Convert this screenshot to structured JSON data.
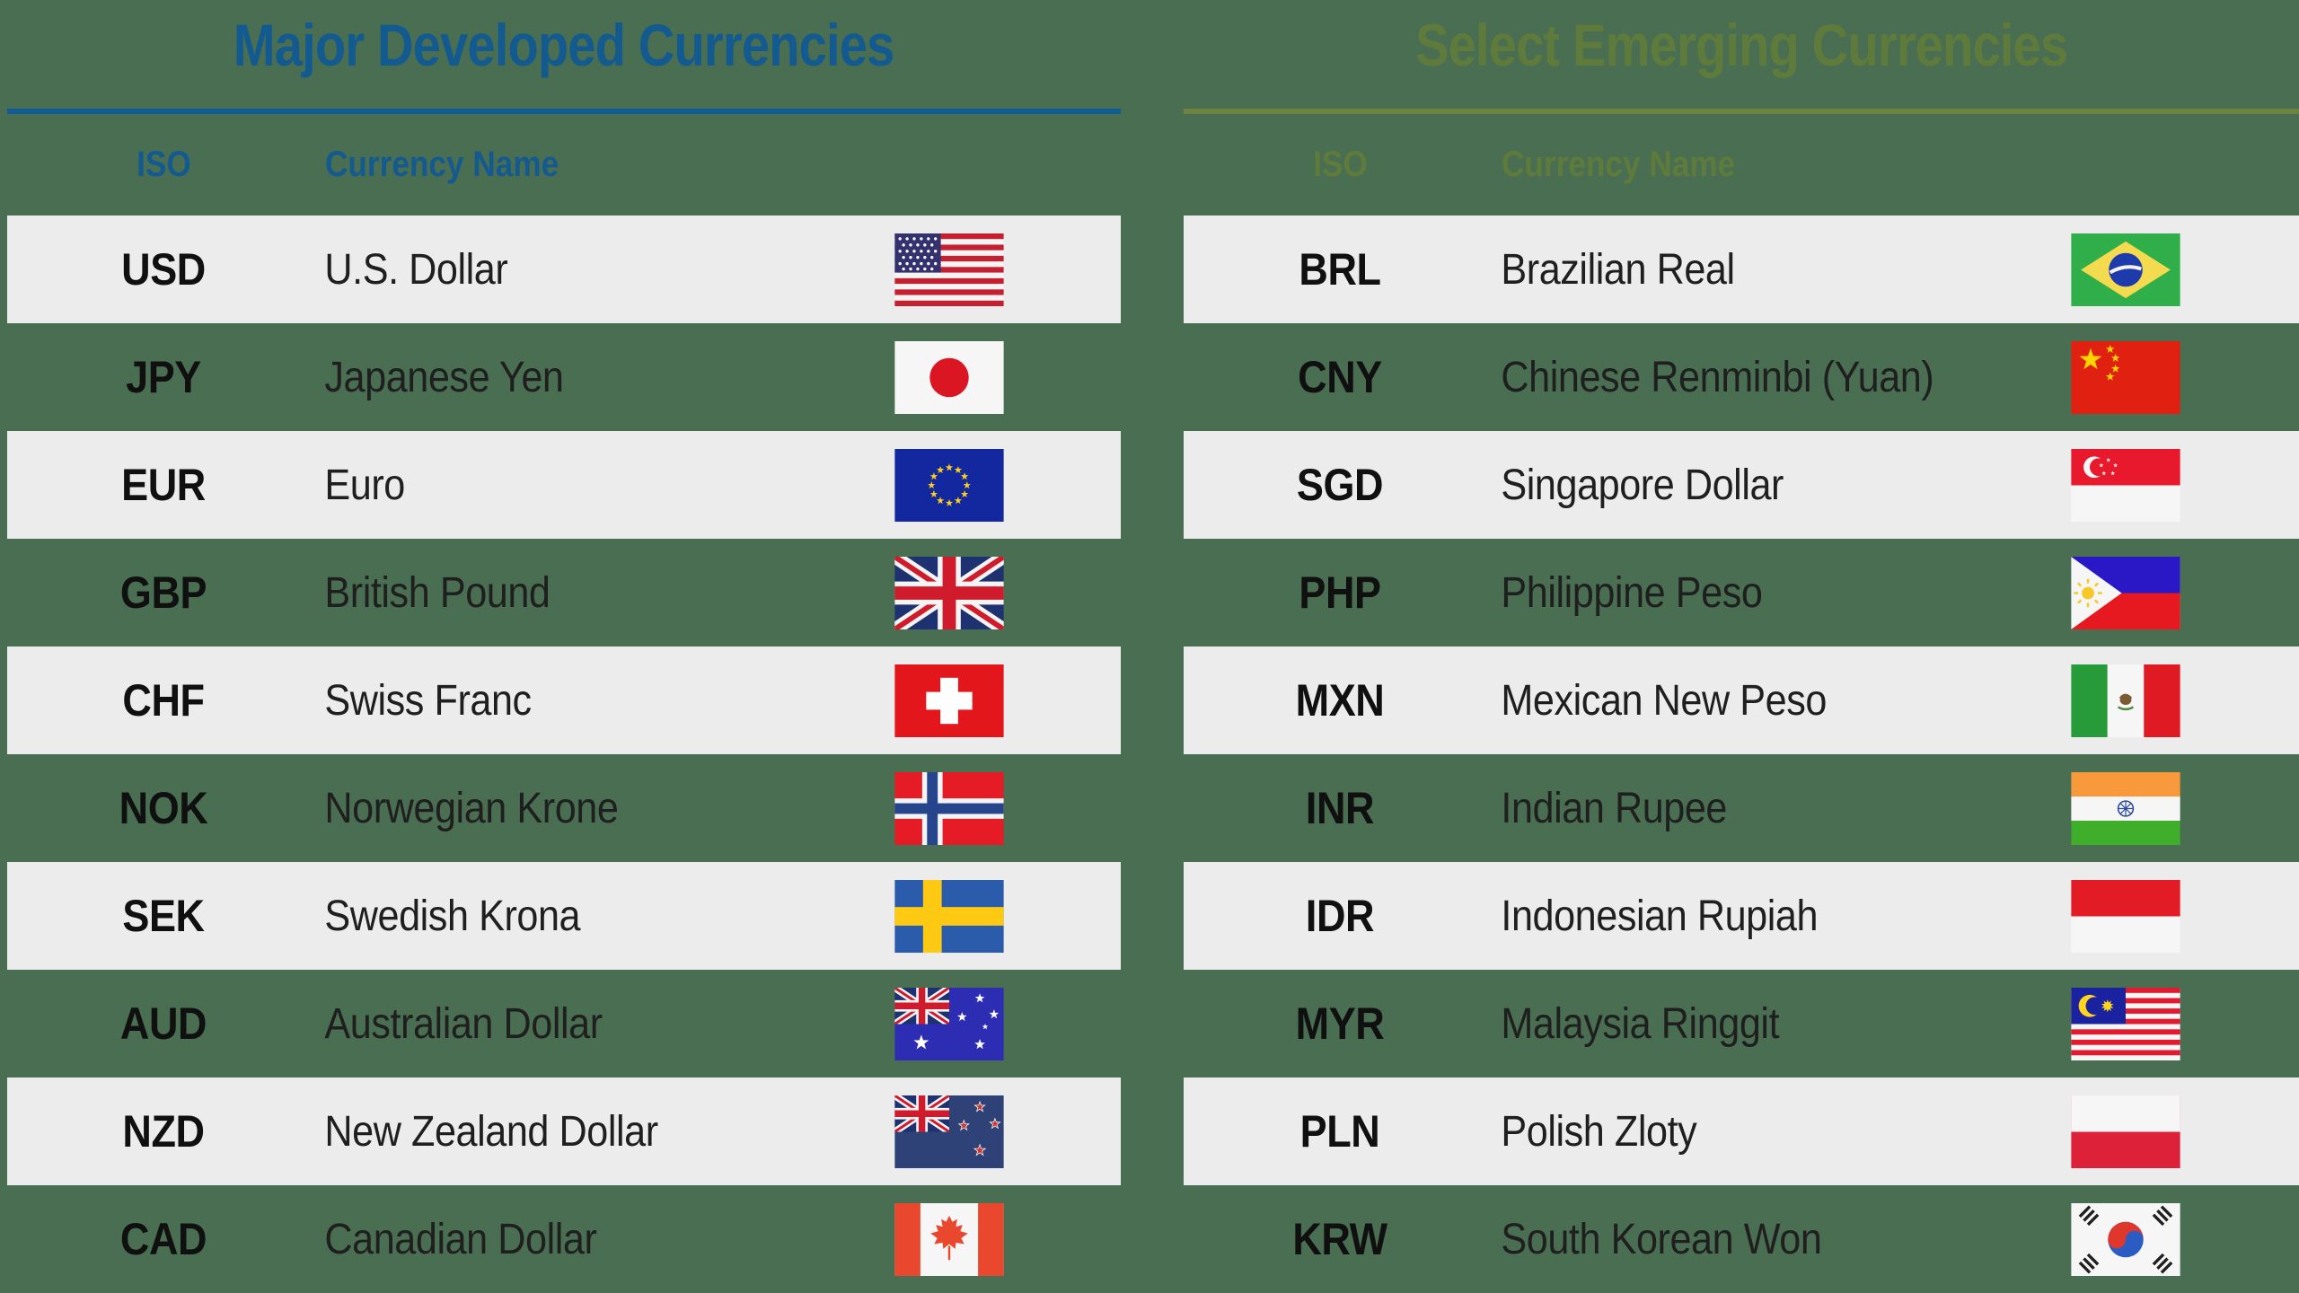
{
  "canvas": {
    "background": "#4a6e52",
    "stripe_color": "#ececec"
  },
  "tables": [
    {
      "title": "Major Developed Currencies",
      "title_color": "#135a90",
      "rule_color": "#0f5c96",
      "columns": {
        "iso": "ISO",
        "name": "Currency Name"
      },
      "rows": [
        {
          "iso": "USD",
          "name": "U.S. Dollar",
          "flag": "us"
        },
        {
          "iso": "JPY",
          "name": "Japanese Yen",
          "flag": "jp"
        },
        {
          "iso": "EUR",
          "name": "Euro",
          "flag": "eu"
        },
        {
          "iso": "GBP",
          "name": "British Pound",
          "flag": "gb"
        },
        {
          "iso": "CHF",
          "name": "Swiss Franc",
          "flag": "ch"
        },
        {
          "iso": "NOK",
          "name": "Norwegian Krone",
          "flag": "no"
        },
        {
          "iso": "SEK",
          "name": "Swedish Krona",
          "flag": "se"
        },
        {
          "iso": "AUD",
          "name": "Australian Dollar",
          "flag": "au"
        },
        {
          "iso": "NZD",
          "name": "New Zealand Dollar",
          "flag": "nz"
        },
        {
          "iso": "CAD",
          "name": "Canadian Dollar",
          "flag": "ca"
        }
      ]
    },
    {
      "title": "Select Emerging Currencies",
      "title_color": "#5e7b3c",
      "rule_color": "#6e8340",
      "columns": {
        "iso": "ISO",
        "name": "Currency Name"
      },
      "rows": [
        {
          "iso": "BRL",
          "name": "Brazilian Real",
          "flag": "br"
        },
        {
          "iso": "CNY",
          "name": "Chinese Renminbi (Yuan)",
          "flag": "cn"
        },
        {
          "iso": "SGD",
          "name": "Singapore Dollar",
          "flag": "sg"
        },
        {
          "iso": "PHP",
          "name": "Philippine Peso",
          "flag": "ph"
        },
        {
          "iso": "MXN",
          "name": "Mexican New Peso",
          "flag": "mx"
        },
        {
          "iso": "INR",
          "name": "Indian Rupee",
          "flag": "in"
        },
        {
          "iso": "IDR",
          "name": "Indonesian Rupiah",
          "flag": "id"
        },
        {
          "iso": "MYR",
          "name": "Malaysia Ringgit",
          "flag": "my"
        },
        {
          "iso": "PLN",
          "name": "Polish Zloty",
          "flag": "pl"
        },
        {
          "iso": "KRW",
          "name": "South Korean Won",
          "flag": "kr"
        }
      ]
    }
  ]
}
